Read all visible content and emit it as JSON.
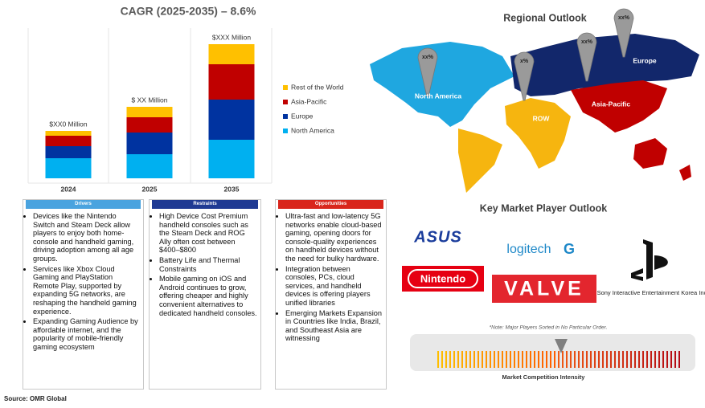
{
  "chart_data": {
    "type": "bar",
    "stacked": true,
    "title": "CAGR (2025-2035) – 8.6%",
    "categories": [
      "2024",
      "2025",
      "2035"
    ],
    "bar_labels": [
      "$XX0 Million",
      "$ XX Million",
      "$XXX Million"
    ],
    "series": [
      {
        "name": "North America",
        "color": "#00b0f0",
        "values": [
          25,
          30,
          48
        ]
      },
      {
        "name": "Europe",
        "color": "#0033a0",
        "values": [
          15,
          27,
          50
        ]
      },
      {
        "name": "Asia-Pacific",
        "color": "#c00000",
        "values": [
          13,
          19,
          44
        ]
      },
      {
        "name": "Rest of the World",
        "color": "#ffc000",
        "values": [
          6,
          13,
          25
        ]
      }
    ]
  },
  "drivers": {
    "title": "Drivers",
    "items": [
      "Devices like the Nintendo Switch and Steam Deck allow players to enjoy both home-console and handheld gaming, driving adoption among all age groups.",
      "Services like Xbox Cloud Gaming and PlayStation Remote Play, supported by expanding 5G networks, are reshaping the handheld gaming experience.",
      "Expanding Gaming Audience by affordable internet, and the popularity of mobile-friendly gaming ecosystem"
    ]
  },
  "restraints": {
    "title": "Restraints",
    "items": [
      "High Device Cost Premium handheld consoles such as the Steam Deck and ROG Ally often cost between $400–$800",
      "Battery Life and Thermal Constraints",
      "Mobile gaming on iOS and Android continues to grow, offering cheaper and highly convenient alternatives to dedicated handheld consoles."
    ]
  },
  "opportunities": {
    "title": "Opportunities",
    "items": [
      "Ultra-fast and low-latency 5G networks enable cloud-based gaming, opening doors for console-quality experiences on handheld devices without the need for bulky hardware.",
      "Integration between consoles, PCs, cloud services, and handheld devices is offering players unified libraries",
      "Emerging Markets Expansion in Countries like India, Brazil, and Southeast Asia are witnessing"
    ]
  },
  "regional_outlook": {
    "title": "Regional Outlook",
    "regions": [
      {
        "label": "North America",
        "share": "xx%"
      },
      {
        "label": "ROW",
        "share": "x%"
      },
      {
        "label": "Asia-Pacific",
        "share": "xx%"
      },
      {
        "label": "Europe",
        "share": "xx%"
      }
    ]
  },
  "key_players": {
    "title": "Key Market Player Outlook",
    "players": [
      "ASUS",
      "logitech",
      "Nintendo",
      "VALVE",
      "Sony Interactive Entertainment Korea Inc."
    ],
    "note": "*Note: Major Players Sorted in No Particular Order.",
    "intensity_label": "Market Competition Intensity"
  },
  "source": "Source: OMR Global"
}
